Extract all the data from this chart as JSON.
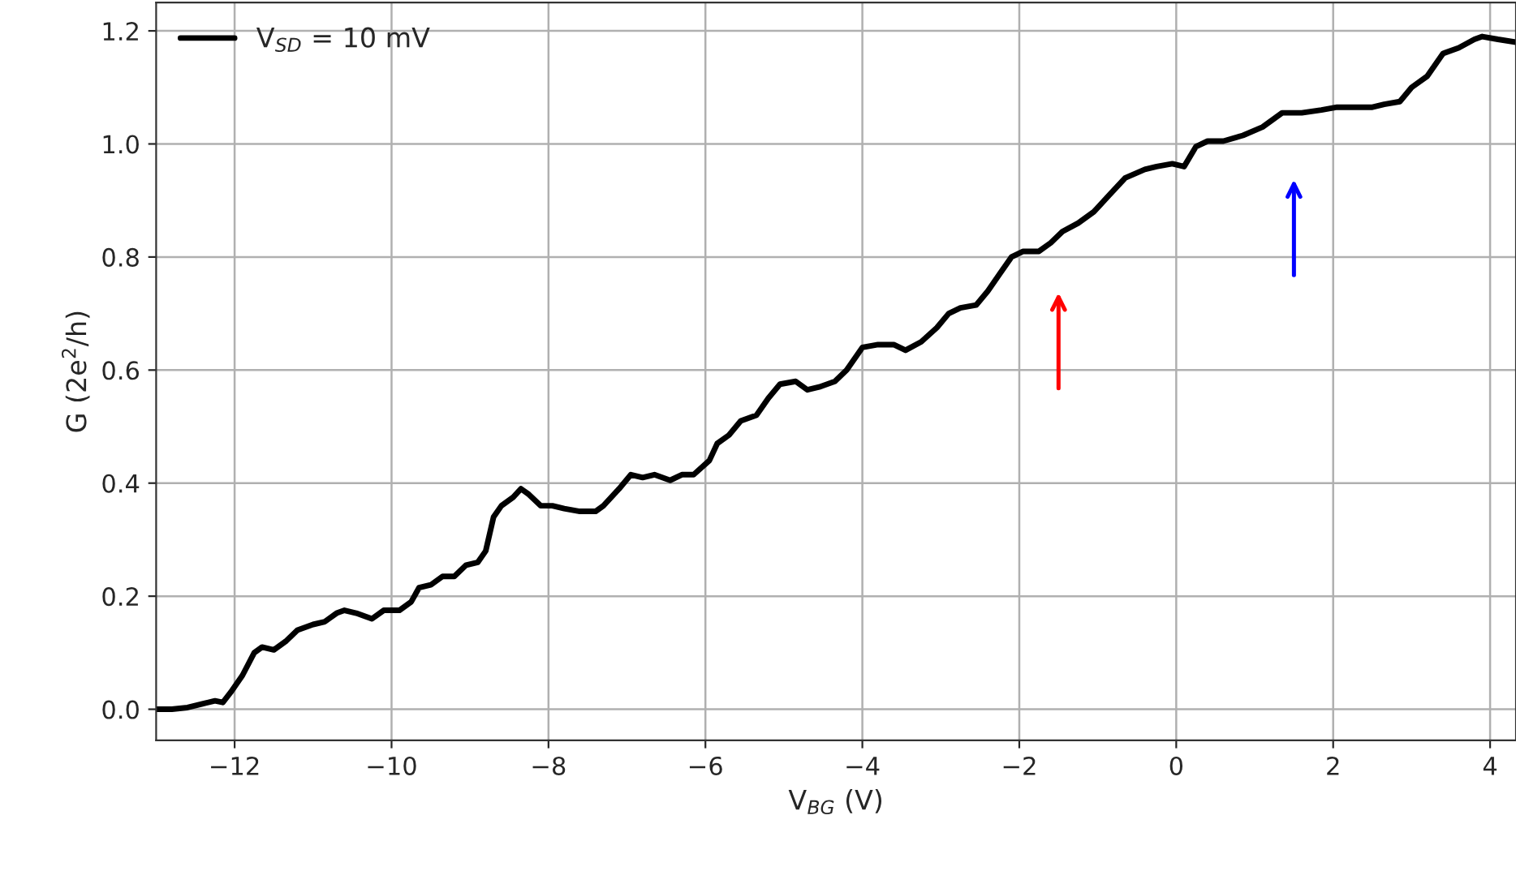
{
  "chart_data": {
    "type": "line",
    "xlabel": "V$_{BG}$ (V)",
    "ylabel": "G (2e$^{2}$/h)",
    "xlim": [
      -13,
      4.33
    ],
    "ylim": [
      -0.055,
      1.25
    ],
    "xticks": [
      {
        "value": -12,
        "label": "−12"
      },
      {
        "value": -10,
        "label": "−10"
      },
      {
        "value": -8,
        "label": "−8"
      },
      {
        "value": -6,
        "label": "−6"
      },
      {
        "value": -4,
        "label": "−4"
      },
      {
        "value": -2,
        "label": "−2"
      },
      0,
      2,
      4
    ],
    "yticks": [
      {
        "value": 0,
        "label": "0.0"
      },
      0.2,
      0.4,
      0.6,
      0.8,
      {
        "value": 1,
        "label": "1.0"
      },
      1.2
    ],
    "grid": true,
    "legend": "top left",
    "marker": "none",
    "line_style": "solid",
    "series": [
      {
        "name": "V$_{SD}$ = 10 mV",
        "color": "#000000",
        "x": [
          -13,
          -12.8,
          -12.6,
          -12.4,
          -12.25,
          -12.15,
          -12.05,
          -11.9,
          -11.75,
          -11.65,
          -11.5,
          -11.35,
          -11.2,
          -11.0,
          -10.85,
          -10.7,
          -10.6,
          -10.45,
          -10.25,
          -10.1,
          -9.9,
          -9.75,
          -9.65,
          -9.5,
          -9.35,
          -9.2,
          -9.05,
          -8.9,
          -8.8,
          -8.7,
          -8.6,
          -8.45,
          -8.35,
          -8.25,
          -8.1,
          -7.95,
          -7.8,
          -7.6,
          -7.4,
          -7.3,
          -7.1,
          -6.95,
          -6.8,
          -6.65,
          -6.45,
          -6.3,
          -6.15,
          -5.95,
          -5.85,
          -5.7,
          -5.55,
          -5.35,
          -5.2,
          -5.05,
          -4.85,
          -4.7,
          -4.55,
          -4.35,
          -4.2,
          -4.0,
          -3.8,
          -3.6,
          -3.45,
          -3.25,
          -3.05,
          -2.9,
          -2.75,
          -2.55,
          -2.4,
          -2.25,
          -2.1,
          -1.95,
          -1.75,
          -1.6,
          -1.45,
          -1.25,
          -1.05,
          -0.85,
          -0.65,
          -0.4,
          -0.25,
          -0.05,
          0.1,
          0.25,
          0.4,
          0.6,
          0.85,
          1.1,
          1.35,
          1.6,
          1.85,
          2.05,
          2.3,
          2.5,
          2.65,
          2.85,
          3.0,
          3.2,
          3.4,
          3.6,
          3.8,
          3.9,
          4.1,
          4.33
        ],
        "values": [
          0.0,
          0.0,
          0.003,
          0.01,
          0.015,
          0.012,
          0.03,
          0.06,
          0.1,
          0.11,
          0.105,
          0.12,
          0.14,
          0.15,
          0.155,
          0.17,
          0.175,
          0.17,
          0.16,
          0.175,
          0.175,
          0.19,
          0.215,
          0.22,
          0.235,
          0.235,
          0.255,
          0.26,
          0.28,
          0.34,
          0.36,
          0.375,
          0.39,
          0.38,
          0.36,
          0.36,
          0.355,
          0.35,
          0.35,
          0.36,
          0.39,
          0.415,
          0.41,
          0.415,
          0.405,
          0.415,
          0.415,
          0.44,
          0.47,
          0.485,
          0.51,
          0.52,
          0.55,
          0.575,
          0.58,
          0.565,
          0.57,
          0.58,
          0.6,
          0.64,
          0.645,
          0.645,
          0.635,
          0.65,
          0.675,
          0.7,
          0.71,
          0.715,
          0.74,
          0.77,
          0.8,
          0.81,
          0.81,
          0.825,
          0.845,
          0.86,
          0.88,
          0.91,
          0.94,
          0.955,
          0.96,
          0.965,
          0.96,
          0.995,
          1.005,
          1.005,
          1.015,
          1.03,
          1.055,
          1.055,
          1.06,
          1.065,
          1.065,
          1.065,
          1.07,
          1.075,
          1.1,
          1.12,
          1.16,
          1.17,
          1.185,
          1.19,
          1.185,
          1.18
        ]
      }
    ]
  }
}
